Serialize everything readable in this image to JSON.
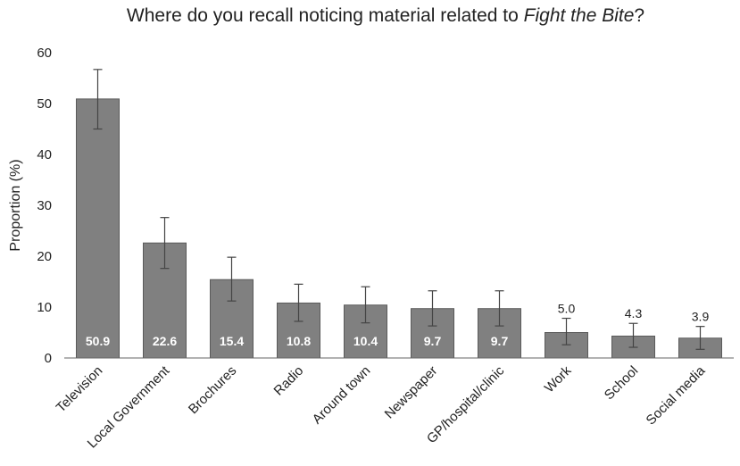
{
  "chart_data": {
    "type": "bar",
    "title_prefix": "Where do you recall noticing material related to ",
    "title_italic": "Fight the Bite",
    "title_suffix": "?",
    "xlabel": "",
    "ylabel": "Proportion (%)",
    "ylim": [
      0,
      60
    ],
    "yticks": [
      "0",
      "10",
      "20",
      "30",
      "40",
      "50",
      "60"
    ],
    "grid": false,
    "categories": [
      "Television",
      "Local Government",
      "Brochures",
      "Radio",
      "Around town",
      "Newspaper",
      "GP/hospital/clinic",
      "Work",
      "School",
      "Social media"
    ],
    "values": [
      50.9,
      22.6,
      15.4,
      10.8,
      10.4,
      9.7,
      9.7,
      5.0,
      4.3,
      3.9
    ],
    "value_labels": [
      "50.9",
      "22.6",
      "15.4",
      "10.8",
      "10.4",
      "9.7",
      "9.7",
      "5.0",
      "4.3",
      "3.9"
    ],
    "error_low": [
      45.0,
      17.6,
      11.2,
      7.2,
      6.9,
      6.3,
      6.3,
      2.6,
      2.1,
      1.7
    ],
    "error_high": [
      56.7,
      27.6,
      19.8,
      14.5,
      14.0,
      13.2,
      13.2,
      7.8,
      6.8,
      6.2
    ],
    "bar_color": "#808080",
    "bar_border_color": "#5a5a5a",
    "error_bar_color": "#444444",
    "axis_color": "#666666"
  }
}
